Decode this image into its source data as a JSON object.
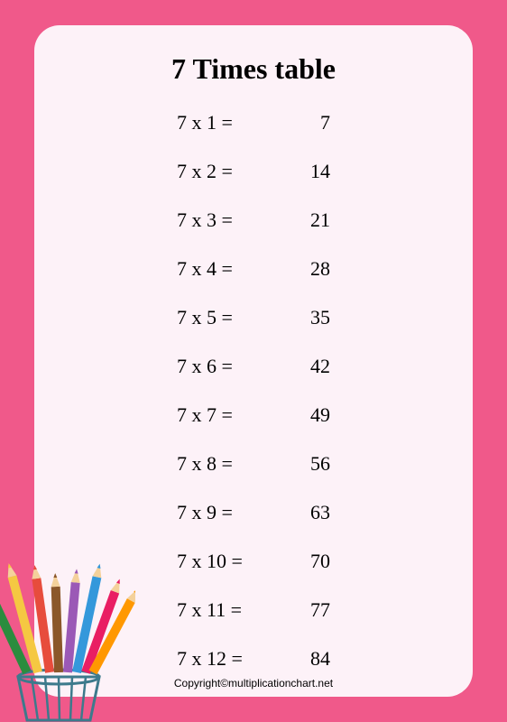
{
  "title": "7 Times table",
  "multiplier": 7,
  "rows": [
    {
      "expression": "7 x 1 =",
      "result": "7"
    },
    {
      "expression": "7 x 2 =",
      "result": "14"
    },
    {
      "expression": "7 x 3 =",
      "result": "21"
    },
    {
      "expression": "7 x 4 =",
      "result": "28"
    },
    {
      "expression": "7 x 5 =",
      "result": "35"
    },
    {
      "expression": "7 x 6 =",
      "result": "42"
    },
    {
      "expression": "7 x 7 =",
      "result": "49"
    },
    {
      "expression": "7 x 8 =",
      "result": "56"
    },
    {
      "expression": "7 x 9 =",
      "result": "63"
    },
    {
      "expression": "7 x 10 =",
      "result": "70"
    },
    {
      "expression": "7 x 11 =",
      "result": "77"
    },
    {
      "expression": "7 x 12 =",
      "result": "84"
    }
  ],
  "copyright": "Copyright©multiplicationchart.net",
  "colors": {
    "background": "#f0598a",
    "card": "#fdf2f8",
    "text": "#000000"
  },
  "pencils": {
    "colors": [
      "#2b8c3e",
      "#f5c842",
      "#e74c3c",
      "#8b572a",
      "#9b59b6",
      "#3498db",
      "#e91e63",
      "#ff9800"
    ],
    "cup_color": "#3d7a8c"
  },
  "typography": {
    "title_fontsize": 32,
    "row_fontsize": 22,
    "copyright_fontsize": 12,
    "title_weight": "bold",
    "font_family": "Georgia, Times New Roman, serif"
  }
}
